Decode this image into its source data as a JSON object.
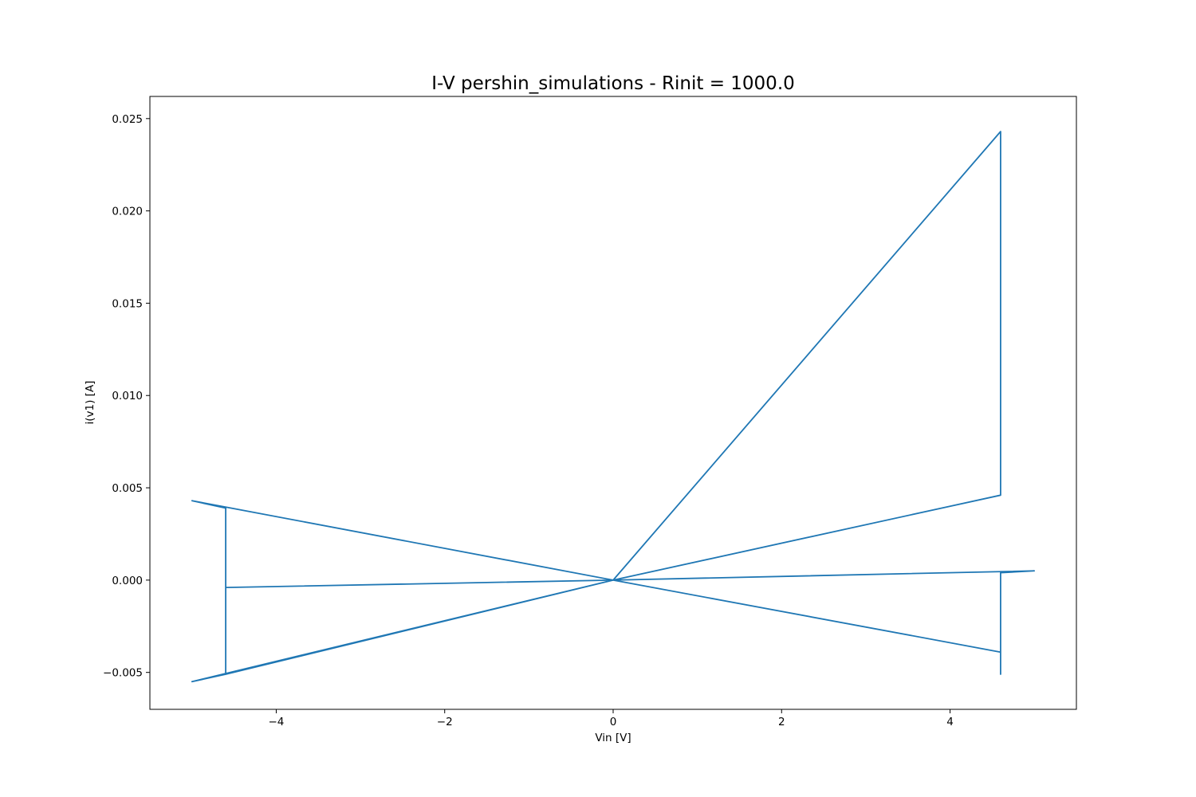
{
  "chart_data": {
    "type": "line",
    "title": "I-V pershin_simulations - Rinit = 1000.0",
    "xlabel": "Vin [V]",
    "ylabel": "i(v1) [A]",
    "xlim": [
      -5.5,
      5.5
    ],
    "ylim": [
      -0.007,
      0.0262
    ],
    "xticks": [
      -4,
      -2,
      0,
      2,
      4
    ],
    "xtick_labels": [
      "−4",
      "−2",
      "0",
      "2",
      "4"
    ],
    "yticks": [
      -0.005,
      0.0,
      0.005,
      0.01,
      0.015,
      0.02,
      0.025
    ],
    "ytick_labels": [
      "−0.005",
      "0.000",
      "0.005",
      "0.010",
      "0.015",
      "0.020",
      "0.025"
    ],
    "grid": false,
    "color": "#1f77b4",
    "series": [
      {
        "x": [
          0,
          4.6,
          4.6,
          0,
          -5.0,
          -4.6,
          -4.6,
          0,
          5.0,
          4.6,
          4.6,
          4.6,
          0,
          -5.0,
          -4.6,
          -4.6,
          -4.6,
          0,
          5.0
        ],
        "y": [
          0,
          0.0046,
          0.0243,
          0,
          0.0043,
          0.0039,
          -0.0051,
          0,
          0.0005,
          0.0004,
          -0.0051,
          -0.0039,
          0,
          -0.0055,
          -0.0051,
          -0.0016,
          -0.0004,
          0,
          0.0005
        ]
      }
    ]
  }
}
